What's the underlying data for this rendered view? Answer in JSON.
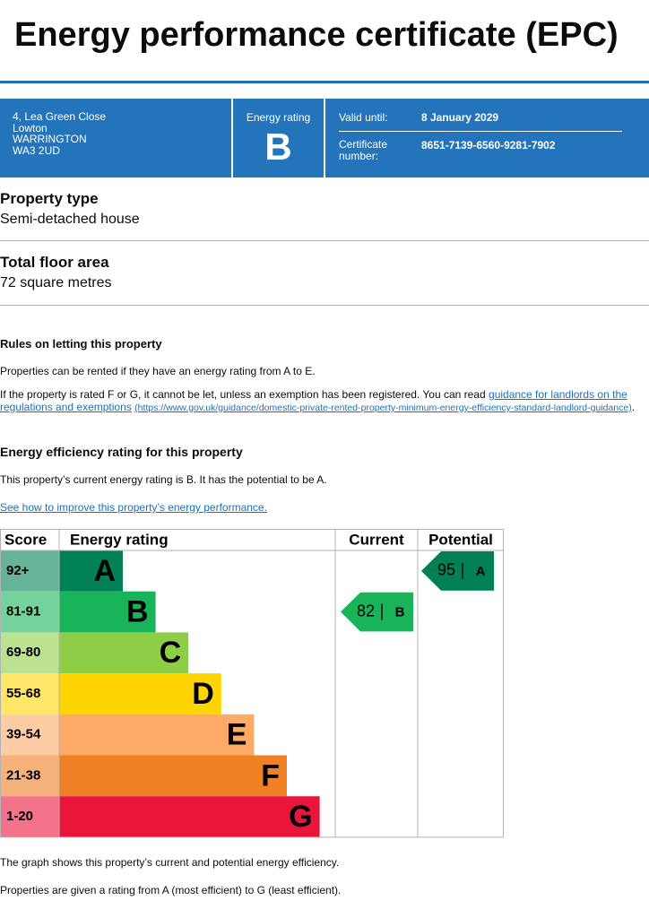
{
  "header": {
    "title": "Energy performance certificate (EPC)"
  },
  "summary": {
    "address": [
      "4, Lea Green Close",
      "Lowton",
      "WARRINGTON",
      "WA3 2UD"
    ],
    "rating_label": "Energy rating",
    "rating": "B",
    "valid_until_label": "Valid until:",
    "valid_until": "8 January 2029",
    "certificate_label": "Certificate number:",
    "certificate_number": "8651-7139-6560-9281-7902"
  },
  "property": [
    {
      "heading": "Property type",
      "value": "Semi-detached house"
    },
    {
      "heading": "Total floor area",
      "value": "72 square metres"
    }
  ],
  "rules": {
    "heading": "Rules on letting this property",
    "paragraph": "Properties can be rented if they have an energy rating from A to E.",
    "exemption": {
      "text": "If the property is rated F or G, it cannot be let, unless an exemption has been registered. You can read",
      "link": "guidance for landlords on the regulations and exemptions",
      "url": "(https://www.gov.uk/guidance/domestic-private-rented-property-minimum-energy-efficiency-standard-landlord-guidance)",
      "end": "."
    }
  },
  "efficiency": {
    "heading": "Energy efficiency rating for this property",
    "text": "This property’s current energy rating is B. It has the potential to be A.",
    "link": "See how to improve this property’s energy performance."
  },
  "rating_table": {
    "headers": [
      "Score",
      "Energy rating",
      "Current",
      "Potential"
    ],
    "bands": [
      {
        "score": "92+",
        "letter": "A",
        "color": "#008054",
        "score_color": "#66b398"
      },
      {
        "score": "81-91",
        "letter": "B",
        "color": "#19b459",
        "score_color": "#75d29b"
      },
      {
        "score": "69-80",
        "letter": "C",
        "color": "#8dce46",
        "score_color": "#bbe290"
      },
      {
        "score": "55-68",
        "letter": "D",
        "color": "#ffd500",
        "score_color": "#ffe666"
      },
      {
        "score": "39-54",
        "letter": "E",
        "color": "#fcaa65",
        "score_color": "#fdcca3"
      },
      {
        "score": "21-38",
        "letter": "F",
        "color": "#ef8023",
        "score_color": "#f5b37b"
      },
      {
        "score": "1-20",
        "letter": "G",
        "color": "#e9153b",
        "score_color": "#f27389"
      }
    ],
    "current": {
      "value": 82,
      "letter": "B"
    },
    "potential": {
      "value": 95,
      "letter": "A"
    }
  },
  "footer": [
    "The graph shows this property’s current and potential energy efficiency.",
    "Properties are given a rating from A (most efficient) to G (least efficient)."
  ]
}
